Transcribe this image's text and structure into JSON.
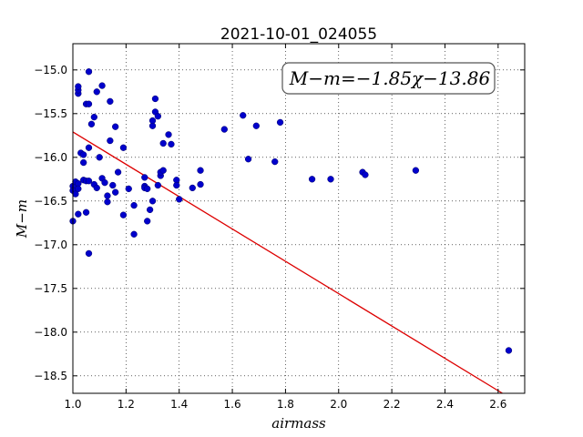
{
  "chart_data": {
    "type": "scatter",
    "title": "2021-10-01_024055",
    "xlabel": "airmass",
    "ylabel": "M−m",
    "xlim": [
      1.0,
      2.7
    ],
    "ylim": [
      -18.7,
      -14.7
    ],
    "y_inverted": true,
    "grid": true,
    "x_ticks": [
      1.0,
      1.2,
      1.4,
      1.6,
      1.8,
      2.0,
      2.2,
      2.4,
      2.6
    ],
    "x_tick_labels": [
      "1.0",
      "1.2",
      "1.4",
      "1.6",
      "1.8",
      "2.0",
      "2.2",
      "2.4",
      "2.6"
    ],
    "y_ticks": [
      -15.0,
      -15.5,
      -16.0,
      -16.5,
      -17.0,
      -17.5,
      -18.0,
      -18.5
    ],
    "y_tick_labels": [
      "−15.0",
      "−15.5",
      "−16.0",
      "−16.5",
      "−17.0",
      "−17.5",
      "−18.0",
      "−18.5"
    ],
    "annotation": "M−m=−1.85χ−13.86",
    "annotation_placement": "top-right",
    "marker_color": "#0000cc",
    "fit_color": "#dd0000",
    "fit_line": {
      "slope": -1.85,
      "intercept": -13.86
    },
    "points": [
      {
        "x": 1.0,
        "y": -16.73
      },
      {
        "x": 1.0,
        "y": -16.33
      },
      {
        "x": 1.0,
        "y": -16.38
      },
      {
        "x": 1.01,
        "y": -16.28
      },
      {
        "x": 1.01,
        "y": -16.42
      },
      {
        "x": 1.02,
        "y": -16.3
      },
      {
        "x": 1.02,
        "y": -16.65
      },
      {
        "x": 1.02,
        "y": -16.36
      },
      {
        "x": 1.02,
        "y": -15.27
      },
      {
        "x": 1.02,
        "y": -15.23
      },
      {
        "x": 1.02,
        "y": -15.19
      },
      {
        "x": 1.03,
        "y": -15.95
      },
      {
        "x": 1.04,
        "y": -16.26
      },
      {
        "x": 1.04,
        "y": -16.06
      },
      {
        "x": 1.04,
        "y": -15.97
      },
      {
        "x": 1.05,
        "y": -16.27
      },
      {
        "x": 1.05,
        "y": -15.39
      },
      {
        "x": 1.05,
        "y": -16.63
      },
      {
        "x": 1.06,
        "y": -15.89
      },
      {
        "x": 1.06,
        "y": -15.39
      },
      {
        "x": 1.06,
        "y": -16.27
      },
      {
        "x": 1.06,
        "y": -15.02
      },
      {
        "x": 1.06,
        "y": -17.1
      },
      {
        "x": 1.07,
        "y": -15.62
      },
      {
        "x": 1.08,
        "y": -15.54
      },
      {
        "x": 1.08,
        "y": -16.31
      },
      {
        "x": 1.09,
        "y": -16.35
      },
      {
        "x": 1.09,
        "y": -15.25
      },
      {
        "x": 1.1,
        "y": -16.0
      },
      {
        "x": 1.11,
        "y": -15.18
      },
      {
        "x": 1.11,
        "y": -16.24
      },
      {
        "x": 1.12,
        "y": -16.29
      },
      {
        "x": 1.13,
        "y": -16.44
      },
      {
        "x": 1.13,
        "y": -16.51
      },
      {
        "x": 1.14,
        "y": -15.36
      },
      {
        "x": 1.14,
        "y": -15.81
      },
      {
        "x": 1.15,
        "y": -16.32
      },
      {
        "x": 1.16,
        "y": -16.4
      },
      {
        "x": 1.16,
        "y": -15.65
      },
      {
        "x": 1.17,
        "y": -16.17
      },
      {
        "x": 1.19,
        "y": -15.89
      },
      {
        "x": 1.19,
        "y": -16.66
      },
      {
        "x": 1.21,
        "y": -16.36
      },
      {
        "x": 1.23,
        "y": -16.55
      },
      {
        "x": 1.23,
        "y": -16.88
      },
      {
        "x": 1.27,
        "y": -16.33
      },
      {
        "x": 1.27,
        "y": -16.35
      },
      {
        "x": 1.27,
        "y": -16.23
      },
      {
        "x": 1.28,
        "y": -16.73
      },
      {
        "x": 1.28,
        "y": -16.36
      },
      {
        "x": 1.29,
        "y": -16.6
      },
      {
        "x": 1.3,
        "y": -16.5
      },
      {
        "x": 1.3,
        "y": -15.64
      },
      {
        "x": 1.3,
        "y": -15.58
      },
      {
        "x": 1.31,
        "y": -15.33
      },
      {
        "x": 1.31,
        "y": -15.48
      },
      {
        "x": 1.32,
        "y": -15.53
      },
      {
        "x": 1.32,
        "y": -16.32
      },
      {
        "x": 1.33,
        "y": -16.21
      },
      {
        "x": 1.33,
        "y": -16.17
      },
      {
        "x": 1.34,
        "y": -16.15
      },
      {
        "x": 1.34,
        "y": -15.84
      },
      {
        "x": 1.36,
        "y": -15.74
      },
      {
        "x": 1.37,
        "y": -15.85
      },
      {
        "x": 1.39,
        "y": -16.26
      },
      {
        "x": 1.39,
        "y": -16.32
      },
      {
        "x": 1.4,
        "y": -16.48
      },
      {
        "x": 1.45,
        "y": -16.35
      },
      {
        "x": 1.48,
        "y": -16.31
      },
      {
        "x": 1.48,
        "y": -16.15
      },
      {
        "x": 1.57,
        "y": -15.68
      },
      {
        "x": 1.64,
        "y": -15.52
      },
      {
        "x": 1.66,
        "y": -16.02
      },
      {
        "x": 1.69,
        "y": -15.64
      },
      {
        "x": 1.76,
        "y": -16.05
      },
      {
        "x": 1.78,
        "y": -15.6
      },
      {
        "x": 1.9,
        "y": -16.25
      },
      {
        "x": 1.97,
        "y": -16.25
      },
      {
        "x": 2.09,
        "y": -16.17
      },
      {
        "x": 2.1,
        "y": -16.2
      },
      {
        "x": 2.29,
        "y": -16.15
      },
      {
        "x": 2.64,
        "y": -18.21
      }
    ]
  }
}
